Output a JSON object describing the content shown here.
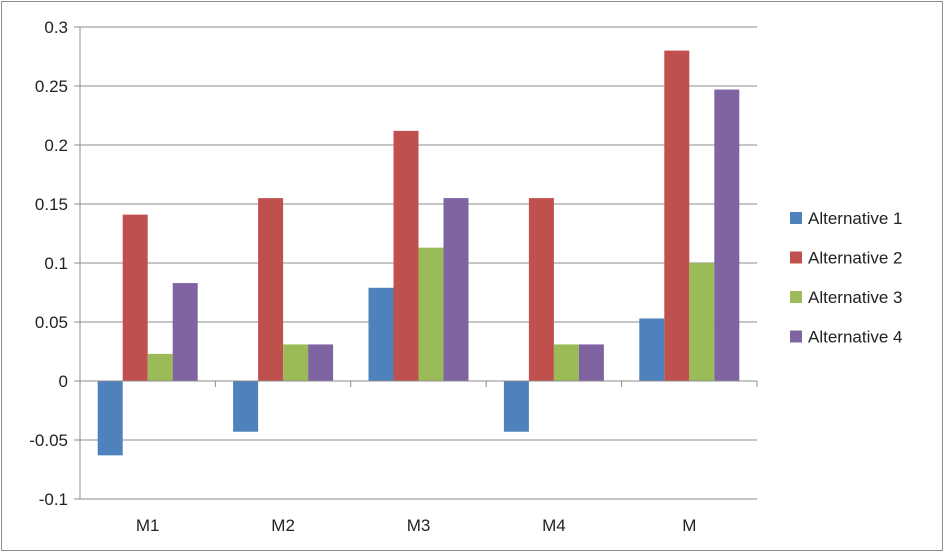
{
  "chart_data": {
    "type": "bar",
    "categories": [
      "M1",
      "M2",
      "M3",
      "M4",
      "M"
    ],
    "series": [
      {
        "name": "Alternative 1",
        "color": "#4f81bd",
        "values": [
          -0.063,
          -0.043,
          0.079,
          -0.043,
          0.053
        ]
      },
      {
        "name": "Alternative 2",
        "color": "#c0504d",
        "values": [
          0.141,
          0.155,
          0.212,
          0.155,
          0.28
        ]
      },
      {
        "name": "Alternative 3",
        "color": "#9bbb59",
        "values": [
          0.023,
          0.031,
          0.113,
          0.031,
          0.1
        ]
      },
      {
        "name": "Alternative 4",
        "color": "#8064a2",
        "values": [
          0.083,
          0.031,
          0.155,
          0.031,
          0.247
        ]
      }
    ],
    "yticks": [
      "-0.1",
      "-0.05",
      "0",
      "0.05",
      "0.1",
      "0.15",
      "0.2",
      "0.25",
      "0.3"
    ],
    "ylim": [
      -0.1,
      0.3
    ],
    "title": "",
    "xlabel": "",
    "ylabel": "",
    "grid": true,
    "legend_position": "right"
  }
}
